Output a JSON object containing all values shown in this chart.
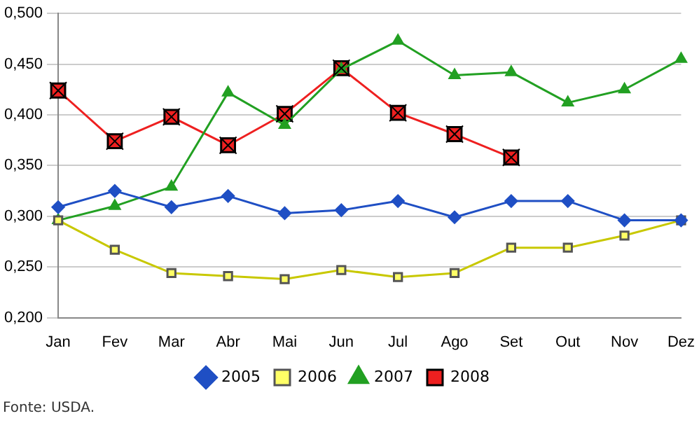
{
  "chart_data": {
    "type": "line",
    "categories": [
      "Jan",
      "Fev",
      "Mar",
      "Abr",
      "Mai",
      "Jun",
      "Jul",
      "Ago",
      "Set",
      "Out",
      "Nov",
      "Dez"
    ],
    "series": [
      {
        "name": "2005",
        "color": "#1f4fc4",
        "marker": "diamond",
        "values": [
          0.309,
          0.325,
          0.309,
          0.32,
          0.303,
          0.306,
          0.315,
          0.299,
          0.315,
          0.315,
          0.296,
          0.296
        ]
      },
      {
        "name": "2006",
        "color": "#c8c800",
        "marker": "square",
        "values": [
          0.296,
          0.267,
          0.244,
          0.241,
          0.238,
          0.247,
          0.24,
          0.244,
          0.269,
          0.269,
          0.281,
          0.296
        ]
      },
      {
        "name": "2007",
        "color": "#22a022",
        "marker": "triangle",
        "values": [
          0.296,
          0.31,
          0.329,
          0.422,
          0.39,
          0.445,
          0.473,
          0.439,
          0.442,
          0.412,
          0.425,
          0.455
        ]
      },
      {
        "name": "2008",
        "color": "#ee2020",
        "marker": "square",
        "values": [
          0.424,
          0.374,
          0.398,
          0.37,
          0.401,
          0.446,
          0.402,
          0.381,
          0.358,
          null,
          null,
          null
        ]
      }
    ],
    "ylim": [
      0.2,
      0.5
    ],
    "yticks": [
      {
        "value": 0.2,
        "label": "0,200"
      },
      {
        "value": 0.25,
        "label": "0,250"
      },
      {
        "value": 0.3,
        "label": "0,300"
      },
      {
        "value": 0.35,
        "label": "0,350"
      },
      {
        "value": 0.4,
        "label": "0,400"
      },
      {
        "value": 0.45,
        "label": "0,450"
      },
      {
        "value": 0.5,
        "label": "0,500"
      }
    ],
    "grid": "y",
    "legend": "bottom",
    "line_style": "solid",
    "annotations": [
      "Fonte: USDA."
    ]
  }
}
